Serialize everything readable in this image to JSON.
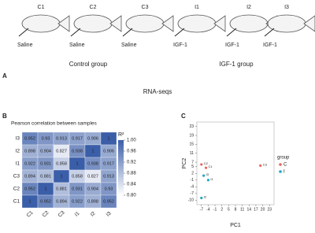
{
  "panel_a": {
    "letter": "A",
    "fish": [
      {
        "label": "C1",
        "treatment": "Saline"
      },
      {
        "label": "C2",
        "treatment": "Saline"
      },
      {
        "label": "C3",
        "treatment": "Saline"
      },
      {
        "label": "I1",
        "treatment": "IGF-1"
      },
      {
        "label": "I2",
        "treatment": "IGF-1"
      },
      {
        "label": "I3",
        "treatment": "IGF-1"
      }
    ],
    "groups": [
      "Control group",
      "IGF-1 group"
    ],
    "caption": "RNA-seqs"
  },
  "chart_data": [
    {
      "type": "heatmap",
      "letter": "B",
      "title": "Pearson correlation between samples",
      "rows": [
        "I3",
        "I2",
        "I1",
        "C3",
        "C2",
        "C1"
      ],
      "columns": [
        "C1",
        "C2",
        "C3",
        "I1",
        "I2",
        "I3"
      ],
      "values": [
        [
          0.952,
          0.93,
          0.913,
          0.917,
          0.906,
          1
        ],
        [
          0.898,
          0.904,
          0.827,
          0.938,
          1,
          0.906
        ],
        [
          0.922,
          0.931,
          0.858,
          1,
          0.938,
          0.917
        ],
        [
          0.894,
          0.881,
          1,
          0.858,
          0.827,
          0.913
        ],
        [
          0.952,
          1,
          0.881,
          0.931,
          0.904,
          0.93
        ],
        [
          1,
          0.952,
          0.894,
          0.922,
          0.898,
          0.952
        ]
      ],
      "colorbar_label": "R²",
      "clim": [
        0.8,
        1.0
      ],
      "colors": [
        "#ffffff",
        "#3b5ea8"
      ],
      "cticks": [
        {
          "value": 1.0,
          "label": "1.00"
        },
        0.96,
        0.92,
        0.88,
        0.84,
        {
          "value": 0.8,
          "label": "0.80"
        }
      ]
    },
    {
      "type": "scatter",
      "letter": "C",
      "xlabel": "PC1",
      "ylabel": "PC2",
      "legend_title": "group",
      "xlim": [
        -9,
        25
      ],
      "ylim": [
        -12,
        25
      ],
      "xticks": [
        -7,
        -4,
        -1,
        2,
        5,
        8,
        11,
        14,
        17,
        20,
        23
      ],
      "yticks": [
        23,
        19,
        15,
        11,
        7,
        5,
        2,
        -1,
        -4,
        -7,
        -10
      ],
      "series": [
        {
          "name": "C",
          "color": "#e8665a",
          "x": [
            -7,
            -5,
            19
          ],
          "values": [
            6,
            4.5,
            5.5
          ],
          "point_labels": [
            "C2",
            "C1",
            "C3"
          ]
        },
        {
          "name": "I",
          "color": "#1fa8c9",
          "x": [
            -6,
            -4,
            -7
          ],
          "values": [
            1,
            -1,
            -9
          ],
          "point_labels": [
            "I3",
            "I1",
            "I2"
          ]
        }
      ]
    }
  ]
}
